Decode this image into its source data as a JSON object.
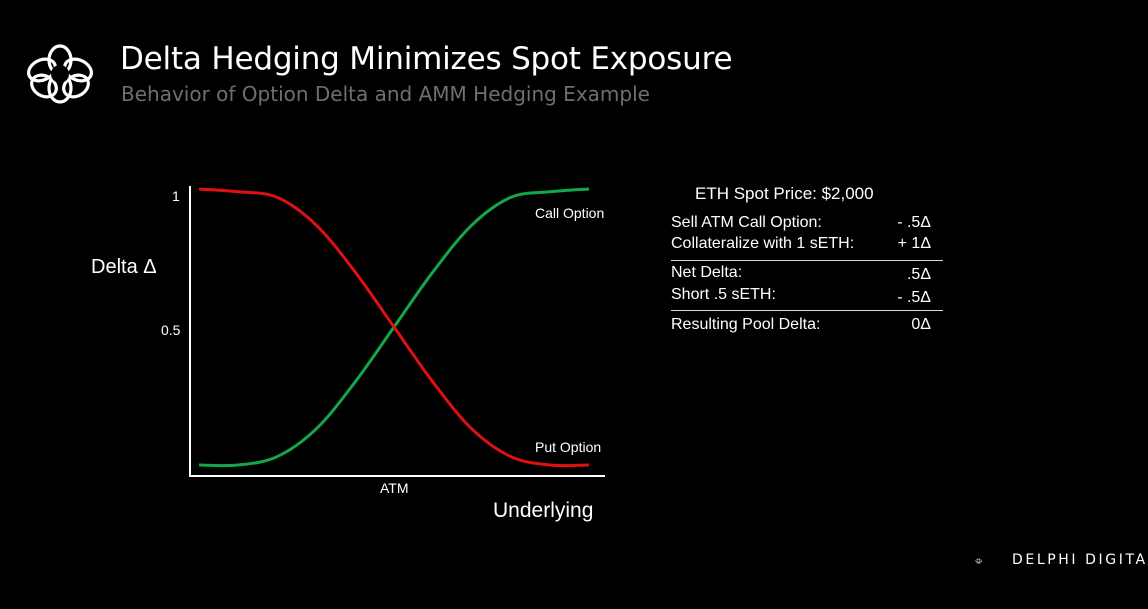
{
  "header": {
    "title": "Delta Hedging Minimizes Spot Exposure",
    "subtitle": "Behavior of Option Delta and AMM Hedging Example"
  },
  "chart_data": {
    "type": "line",
    "ylabel": "Delta Δ",
    "xlabel": "Underlying",
    "y_ticks": [
      "1",
      "0.5"
    ],
    "x_ticks": [
      "ATM"
    ],
    "ylim": [
      0,
      1
    ],
    "xlim": [
      -1,
      1
    ],
    "grid": false,
    "series": [
      {
        "name": "Call Option",
        "color": "#12a84a",
        "x": [
          -1.0,
          -0.8,
          -0.6,
          -0.4,
          -0.2,
          0.0,
          0.2,
          0.4,
          0.6,
          0.8,
          1.0
        ],
        "y": [
          0.0,
          0.0,
          0.03,
          0.13,
          0.3,
          0.5,
          0.7,
          0.87,
          0.97,
          0.99,
          1.0
        ]
      },
      {
        "name": "Put Option",
        "color": "#e01010",
        "x": [
          -1.0,
          -0.8,
          -0.6,
          -0.4,
          -0.2,
          0.0,
          0.2,
          0.4,
          0.6,
          0.8,
          1.0
        ],
        "y": [
          1.0,
          0.99,
          0.97,
          0.87,
          0.7,
          0.5,
          0.3,
          0.13,
          0.03,
          0.0,
          0.0
        ]
      }
    ]
  },
  "hedging_example": {
    "spot_price": "ETH Spot Price: $2,000",
    "rows1": [
      {
        "label": "Sell ATM Call Option:",
        "value": "- .5Δ"
      },
      {
        "label": "Collateralize with 1 sETH:",
        "value": "+ 1Δ"
      }
    ],
    "rows2": [
      {
        "label": "Net Delta:",
        "value": ".5Δ"
      },
      {
        "label": "Short .5 sETH:",
        "value": "- .5Δ"
      }
    ],
    "result": {
      "label": "Resulting Pool Delta:",
      "value": "0Δ"
    }
  },
  "branding": {
    "name": "DELPHI DIGITAL",
    "logo_icon": "delphi-knot-logo"
  }
}
